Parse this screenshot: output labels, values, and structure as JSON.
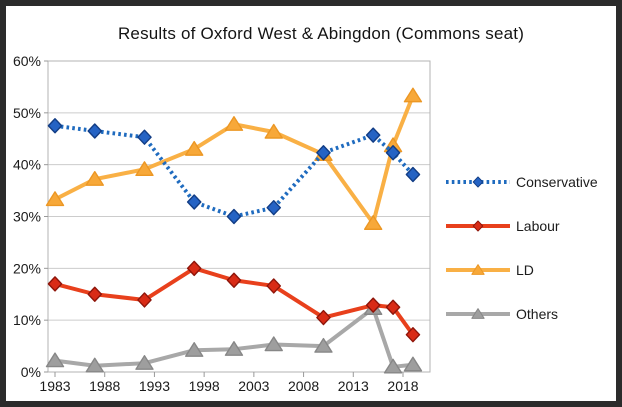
{
  "chart_data": {
    "type": "line",
    "title": "Results of Oxford West & Abingdon (Commons seat)",
    "xlabel": "",
    "ylabel": "",
    "x": [
      1983,
      1987,
      1992,
      1997,
      2001,
      2005,
      2010,
      2015,
      2017,
      2019
    ],
    "x_tick_values": [
      1983,
      1988,
      1993,
      1998,
      2003,
      2008,
      2013,
      2018
    ],
    "x_tick_labels": [
      "1983",
      "1988",
      "1993",
      "1998",
      "2003",
      "2008",
      "2013",
      "2018"
    ],
    "y_tick_values": [
      0,
      10,
      20,
      30,
      40,
      50,
      60
    ],
    "y_tick_labels": [
      "0%",
      "10%",
      "20%",
      "30%",
      "40%",
      "50%",
      "60%"
    ],
    "ylim": [
      0,
      60
    ],
    "grid": "horizontal",
    "legend_position": "right",
    "series": [
      {
        "name": "Conservative",
        "color": "#1f6bbf",
        "marker": "diamond",
        "marker_fill": "#2563c4",
        "marker_stroke": "#123d85",
        "dash": "dotted",
        "values": [
          47.5,
          46.5,
          45.3,
          32.8,
          30.0,
          31.7,
          42.3,
          45.7,
          42.3,
          38.1
        ]
      },
      {
        "name": "Labour",
        "color": "#e8401c",
        "marker": "diamond",
        "marker_fill": "#d92b16",
        "marker_stroke": "#8e150a",
        "dash": "solid",
        "values": [
          17.0,
          15.0,
          13.9,
          20.0,
          17.7,
          16.6,
          10.5,
          12.9,
          12.5,
          7.2
        ]
      },
      {
        "name": "LD",
        "color": "#f9b045",
        "marker": "triangle",
        "marker_fill": "#f7a839",
        "marker_stroke": "#ec9724",
        "dash": "solid",
        "values": [
          33.3,
          37.2,
          39.1,
          43.0,
          47.8,
          46.3,
          42.0,
          28.7,
          43.7,
          53.3
        ]
      },
      {
        "name": "Others",
        "color": "#a8a8a8",
        "marker": "triangle",
        "marker_fill": "#9e9e9e",
        "marker_stroke": "#878787",
        "dash": "solid",
        "values": [
          2.2,
          1.2,
          1.7,
          4.2,
          4.4,
          5.3,
          5.0,
          12.3,
          1.0,
          1.4
        ]
      }
    ]
  }
}
